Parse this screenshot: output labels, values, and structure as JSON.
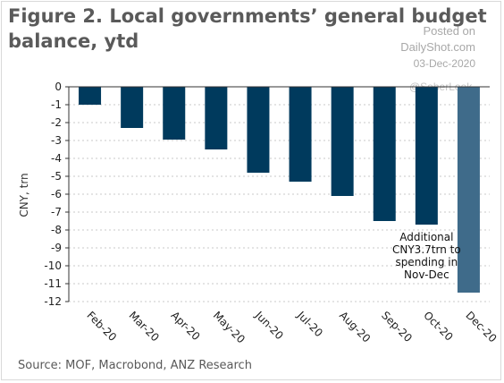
{
  "title": "Figure 2. Local governments’ general budget balance, ytd",
  "watermark": {
    "posted": "Posted on",
    "site": "DailyShot.com",
    "date": "03-Dec-2020",
    "handle": "@SoberLook"
  },
  "source": "Source: MOF, Macrobond, ANZ Research",
  "chart_data": {
    "type": "bar",
    "categories": [
      "Feb-20",
      "Mar-20",
      "Apr-20",
      "May-20",
      "Jun-20",
      "Jul-20",
      "Aug-20",
      "Sep-20",
      "Oct-20",
      "Dec-20"
    ],
    "values": [
      -1.0,
      -2.3,
      -2.95,
      -3.5,
      -4.8,
      -5.3,
      -6.1,
      -7.5,
      -7.7,
      -11.5
    ],
    "ylabel": "CNY, trn",
    "xlabel": "",
    "ylim": [
      -12,
      0
    ],
    "yticks": [
      0,
      -1,
      -2,
      -3,
      -4,
      -5,
      -6,
      -7,
      -8,
      -9,
      -10,
      -11,
      -12
    ],
    "grid": true,
    "colors": {
      "bar": "#003a5d",
      "highlight_bar": "#3f6b8a"
    },
    "highlight_index": 9,
    "annotation": {
      "category": "Oct-20",
      "lines": [
        "Additional",
        "CNY3.7trn to",
        "spending in",
        "Nov-Dec"
      ]
    }
  }
}
